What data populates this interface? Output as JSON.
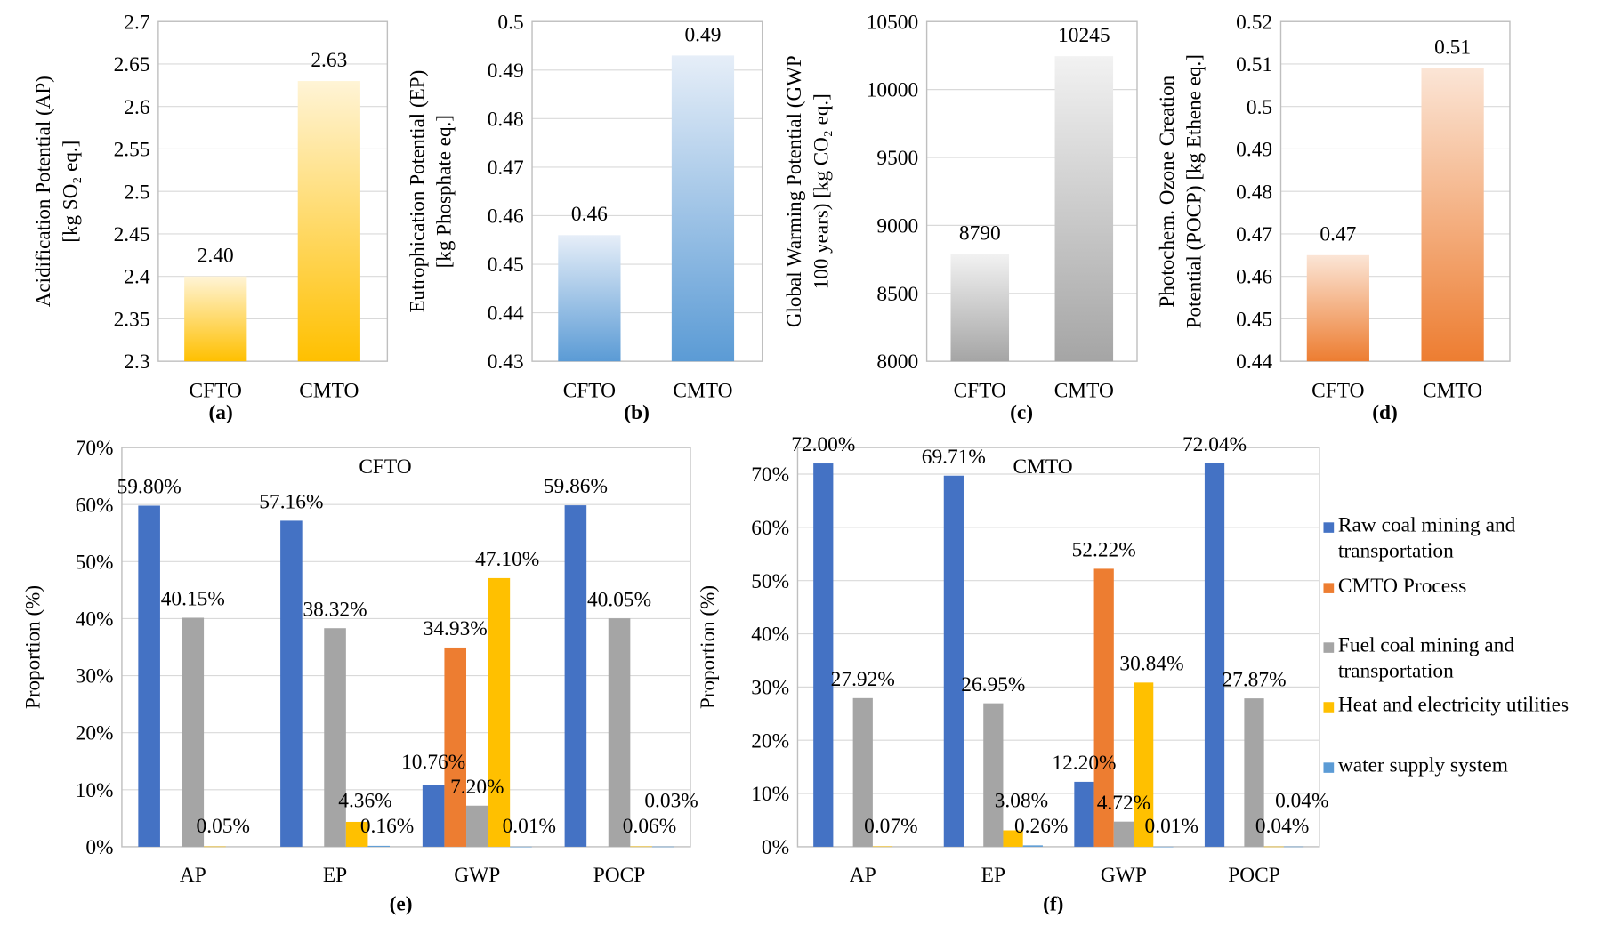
{
  "chart_data": [
    {
      "id": "a",
      "type": "bar",
      "panel_label": "(a)",
      "categories": [
        "CFTO",
        "CMTO"
      ],
      "values": [
        2.4,
        2.63
      ],
      "data_labels": [
        "2.40",
        "2.63"
      ],
      "ylabel": [
        "Acidification Potential (AP)",
        "[kg SO₂ eq.]"
      ],
      "ylim": [
        2.3,
        2.7
      ],
      "yticks": [
        "2.3",
        "2.35",
        "2.4",
        "2.45",
        "2.5",
        "2.55",
        "2.6",
        "2.65",
        "2.7"
      ],
      "grid": true,
      "color_top": "#fff4d6",
      "color_bottom": "#ffc000"
    },
    {
      "id": "b",
      "type": "bar",
      "panel_label": "(b)",
      "categories": [
        "CFTO",
        "CMTO"
      ],
      "values": [
        0.456,
        0.493
      ],
      "data_labels": [
        "0.46",
        "0.49"
      ],
      "ylabel": [
        "Eutrophication Potential (EP)",
        "[kg Phosphate eq.]"
      ],
      "ylim": [
        0.43,
        0.5
      ],
      "yticks": [
        "0.43",
        "0.44",
        "0.45",
        "0.46",
        "0.47",
        "0.48",
        "0.49",
        "0.5"
      ],
      "grid": true,
      "color_top": "#e6eef8",
      "color_bottom": "#5b9bd5"
    },
    {
      "id": "c",
      "type": "bar",
      "panel_label": "(c)",
      "categories": [
        "CFTO",
        "CMTO"
      ],
      "values": [
        8790,
        10245
      ],
      "data_labels": [
        "8790",
        "10245"
      ],
      "ylabel": [
        "Global Warming Potential (GWP",
        "100 years) [kg CO₂ eq.]"
      ],
      "ylim": [
        8000,
        10500
      ],
      "yticks": [
        "8000",
        "8500",
        "9000",
        "9500",
        "10000",
        "10500"
      ],
      "grid": true,
      "color_top": "#f2f2f2",
      "color_bottom": "#a5a5a5"
    },
    {
      "id": "d",
      "type": "bar",
      "panel_label": "(d)",
      "categories": [
        "CFTO",
        "CMTO"
      ],
      "values": [
        0.465,
        0.509
      ],
      "data_labels": [
        "0.47",
        "0.51"
      ],
      "ylabel": [
        "Photochem. Ozone Creation",
        "Potential (POCP) [kg Ethene eq.]"
      ],
      "ylim": [
        0.44,
        0.52
      ],
      "yticks": [
        "0.44",
        "0.45",
        "0.46",
        "0.47",
        "0.48",
        "0.49",
        "0.5",
        "0.51",
        "0.52"
      ],
      "grid": true,
      "color_top": "#fbe5d6",
      "color_bottom": "#ed7d31"
    },
    {
      "id": "e",
      "type": "bar",
      "panel_label": "(e)",
      "title": "CFTO",
      "categories": [
        "AP",
        "EP",
        "GWP",
        "POCP"
      ],
      "ylabel": "Proportion (%)",
      "ylim": [
        0,
        70
      ],
      "yticks": [
        "0%",
        "10%",
        "20%",
        "30%",
        "40%",
        "50%",
        "60%",
        "70%"
      ],
      "grid": true,
      "series": [
        {
          "name": "Raw coal mining and transportation",
          "color": "#4472c4",
          "values": [
            59.8,
            57.16,
            10.76,
            59.86
          ],
          "labels": [
            "59.80%",
            "57.16%",
            "10.76%",
            "59.86%"
          ]
        },
        {
          "name": "CMTO Process",
          "color": "#ed7d31",
          "values": [
            null,
            null,
            34.93,
            null
          ],
          "labels": [
            null,
            null,
            "34.93%",
            null
          ]
        },
        {
          "name": "Fuel coal mining and transportation",
          "color": "#a5a5a5",
          "values": [
            40.15,
            38.32,
            7.2,
            40.05
          ],
          "labels": [
            "40.15%",
            "38.32%",
            "7.20%",
            "40.05%"
          ]
        },
        {
          "name": "Heat and electricity utilities",
          "color": "#ffc000",
          "values": [
            0.05,
            4.36,
            47.1,
            0.06
          ],
          "labels": [
            "0.05%",
            "4.36%",
            "47.10%",
            "0.06%"
          ]
        },
        {
          "name": "water supply system",
          "color": "#5b9bd5",
          "values": [
            null,
            0.16,
            0.01,
            0.03
          ],
          "labels": [
            null,
            "0.16%",
            "0.01%",
            "0.03%"
          ]
        }
      ]
    },
    {
      "id": "f",
      "type": "bar",
      "panel_label": "(f)",
      "title": "CMTO",
      "categories": [
        "AP",
        "EP",
        "GWP",
        "POCP"
      ],
      "ylabel": "Proportion (%)",
      "ylim": [
        0,
        75
      ],
      "yticks": [
        "0%",
        "10%",
        "20%",
        "30%",
        "40%",
        "50%",
        "60%",
        "70%"
      ],
      "grid": true,
      "legend": "right",
      "series": [
        {
          "name": "Raw coal mining and transportation",
          "color": "#4472c4",
          "values": [
            72.0,
            69.71,
            12.2,
            72.04
          ],
          "labels": [
            "72.00%",
            "69.71%",
            "12.20%",
            "72.04%"
          ]
        },
        {
          "name": "CMTO Process",
          "color": "#ed7d31",
          "values": [
            null,
            null,
            52.22,
            null
          ],
          "labels": [
            null,
            null,
            "52.22%",
            null
          ]
        },
        {
          "name": "Fuel coal mining and transportation",
          "color": "#a5a5a5",
          "values": [
            27.92,
            26.95,
            4.72,
            27.87
          ],
          "labels": [
            "27.92%",
            "26.95%",
            "4.72%",
            "27.87%"
          ]
        },
        {
          "name": "Heat and electricity utilities",
          "color": "#ffc000",
          "values": [
            0.07,
            3.08,
            30.84,
            0.04
          ],
          "labels": [
            "0.07%",
            "3.08%",
            "30.84%",
            "0.04%"
          ]
        },
        {
          "name": "water supply system",
          "color": "#5b9bd5",
          "values": [
            null,
            0.26,
            0.01,
            0.04
          ],
          "labels": [
            null,
            "0.26%",
            "0.01%",
            "0.04%"
          ]
        }
      ]
    }
  ],
  "legend": {
    "items": [
      {
        "lines": [
          "Raw coal mining and",
          "transportation"
        ],
        "color": "#4472c4"
      },
      {
        "lines": [
          "CMTO Process"
        ],
        "color": "#ed7d31"
      },
      {
        "lines": [
          "Fuel coal mining and",
          "transportation"
        ],
        "color": "#a5a5a5"
      },
      {
        "lines": [
          "Heat and electricity utilities"
        ],
        "color": "#ffc000"
      },
      {
        "lines": [
          "water supply system"
        ],
        "color": "#5b9bd5"
      }
    ]
  }
}
